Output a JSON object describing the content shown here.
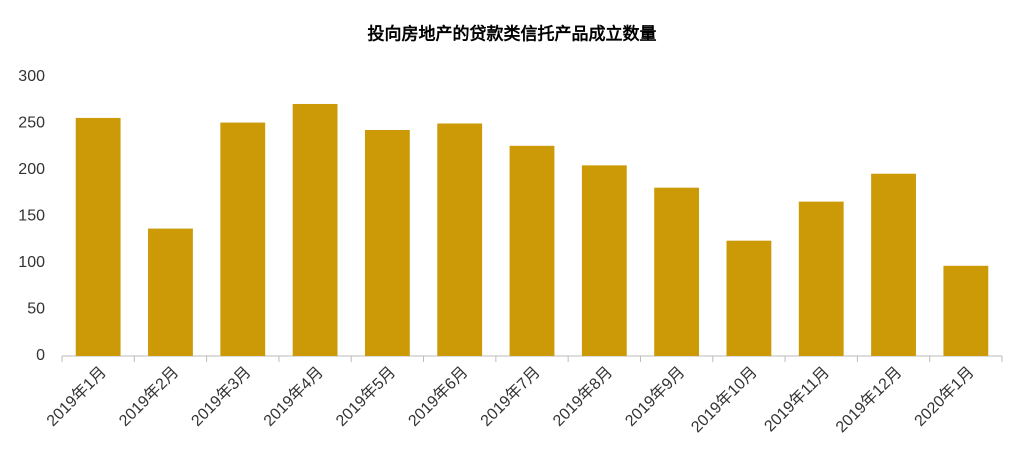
{
  "chart_data": {
    "type": "bar",
    "title": "投向房地产的贷款类信托产品成立数量",
    "categories": [
      "2019年1月",
      "2019年2月",
      "2019年3月",
      "2019年4月",
      "2019年5月",
      "2019年6月",
      "2019年7月",
      "2019年8月",
      "2019年9月",
      "2019年10月",
      "2019年11月",
      "2019年12月",
      "2020年1月"
    ],
    "values": [
      256,
      137,
      251,
      271,
      243,
      250,
      226,
      205,
      181,
      124,
      166,
      196,
      97
    ],
    "color": "#cc9a06",
    "ylim": [
      0,
      300
    ],
    "yticks": [
      0,
      50,
      100,
      150,
      200,
      250,
      300
    ],
    "grid": false
  }
}
